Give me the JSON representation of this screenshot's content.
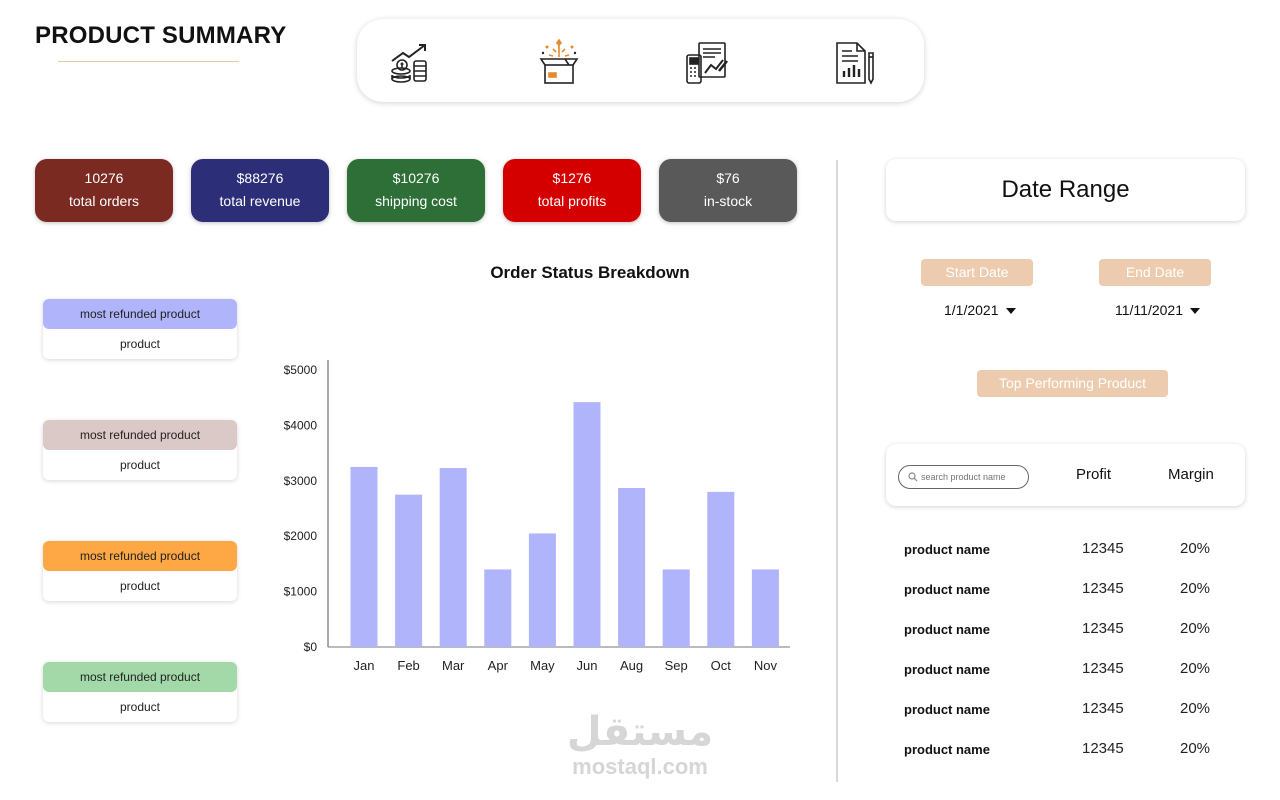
{
  "header": {
    "title": "PRODUCT SUMMARY"
  },
  "nav_icons": [
    "growth-chart-icon",
    "gift-box-icon",
    "invoice-calculator-icon",
    "report-document-icon"
  ],
  "kpis": [
    {
      "value": "10276",
      "label": "total orders",
      "color": "#7a2a20"
    },
    {
      "value": "$88276",
      "label": "total revenue",
      "color": "#2d2e78"
    },
    {
      "value": "$10276",
      "label": "shipping cost",
      "color": "#2e6f37"
    },
    {
      "value": "$1276",
      "label": "total profits",
      "color": "#d40000"
    },
    {
      "value": "$76",
      "label": "in-stock",
      "color": "#595959"
    }
  ],
  "refund_cards": [
    {
      "title": "most refunded product",
      "value": "product",
      "color": "#b0b4fb"
    },
    {
      "title": "most refunded product",
      "value": "product",
      "color": "#dbc9c8"
    },
    {
      "title": "most refunded product",
      "value": "product",
      "color": "#fea745"
    },
    {
      "title": "most refunded product",
      "value": "product",
      "color": "#a3d9a9"
    }
  ],
  "chart_data": {
    "type": "bar",
    "title": "Order Status Breakdown",
    "categories": [
      "Jan",
      "Feb",
      "Mar",
      "Apr",
      "May",
      "Jun",
      "Aug",
      "Sep",
      "Oct",
      "Nov"
    ],
    "values": [
      3250,
      2750,
      3230,
      1400,
      2050,
      4420,
      2870,
      1400,
      2800,
      1400
    ],
    "yticks": [
      "$0",
      "$1000",
      "$2000",
      "$3000",
      "$4000",
      "$5000"
    ],
    "ylim": [
      0,
      5000
    ],
    "bar_color": "#b0b4fb",
    "grid": false,
    "xlabel": "",
    "ylabel": ""
  },
  "date_range": {
    "title": "Date Range",
    "start_label": "Start Date",
    "end_label": "End Date",
    "start_value": "1/1/2021",
    "end_value": "11/11/2021"
  },
  "top_product": {
    "label": "Top Performing Product",
    "search_placeholder": "search product name",
    "columns": [
      "Profit",
      "Margin"
    ],
    "rows": [
      {
        "name": "product name",
        "profit": "12345",
        "margin": "20%"
      },
      {
        "name": "product name",
        "profit": "12345",
        "margin": "20%"
      },
      {
        "name": "product name",
        "profit": "12345",
        "margin": "20%"
      },
      {
        "name": "product name",
        "profit": "12345",
        "margin": "20%"
      },
      {
        "name": "product name",
        "profit": "12345",
        "margin": "20%"
      },
      {
        "name": "product name",
        "profit": "12345",
        "margin": "20%"
      }
    ]
  },
  "watermark": {
    "arabic": "مستقل",
    "latin": "mostaql.com"
  }
}
